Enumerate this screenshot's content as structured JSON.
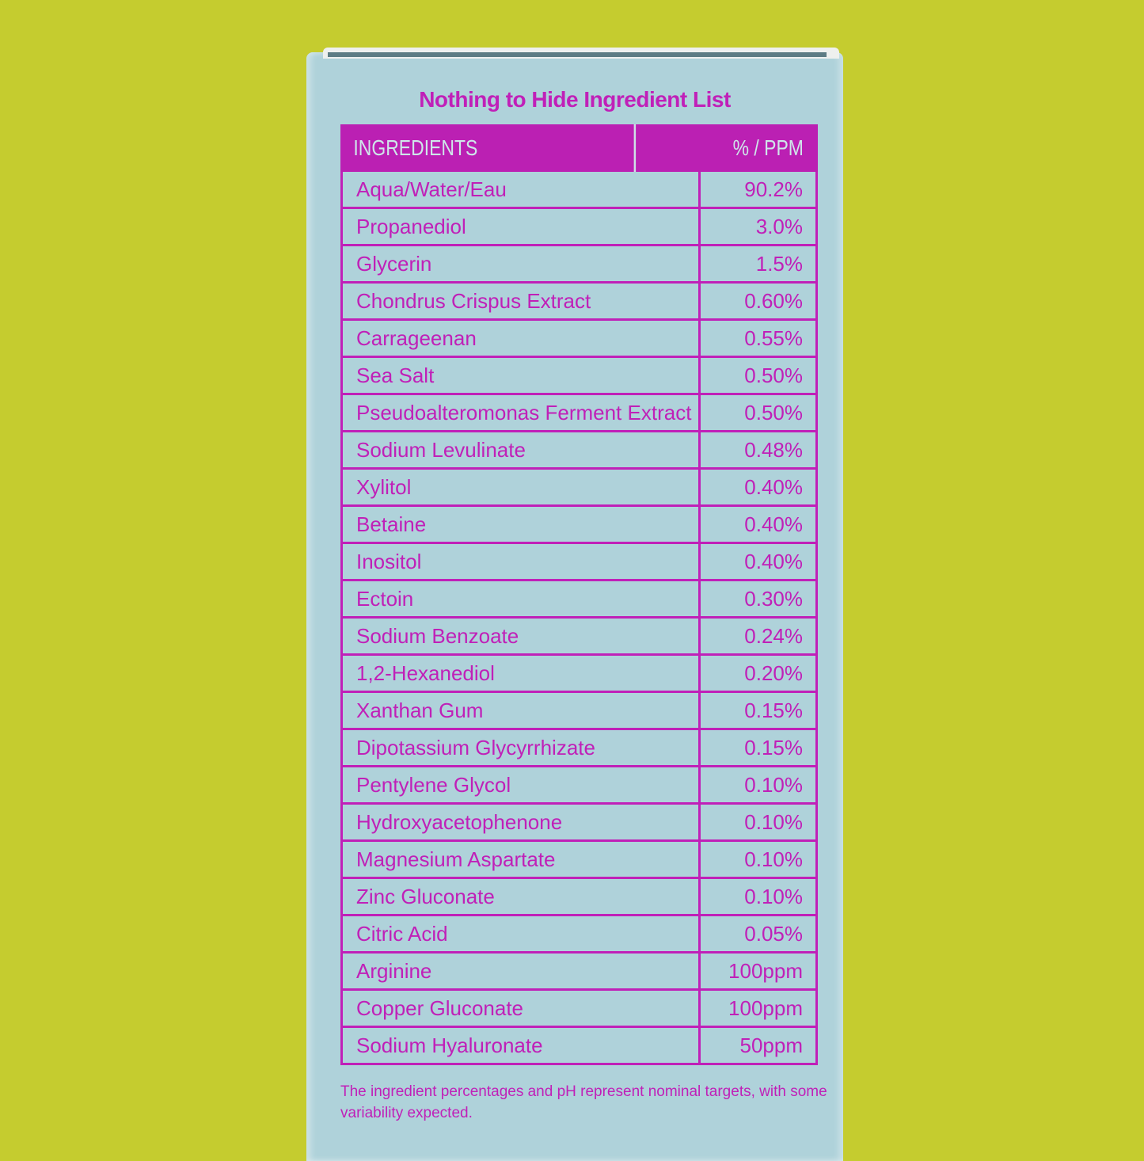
{
  "title": "Nothing to Hide Ingredient List",
  "header": {
    "ingredients": "INGREDIENTS",
    "amount": "% / PPM"
  },
  "rows": [
    {
      "name": "Aqua/Water/Eau",
      "amount": "90.2%"
    },
    {
      "name": "Propanediol",
      "amount": "3.0%"
    },
    {
      "name": "Glycerin",
      "amount": "1.5%"
    },
    {
      "name": "Chondrus Crispus Extract",
      "amount": "0.60%"
    },
    {
      "name": "Carrageenan",
      "amount": "0.55%"
    },
    {
      "name": "Sea Salt",
      "amount": "0.50%"
    },
    {
      "name": "Pseudoalteromonas Ferment Extract",
      "amount": "0.50%"
    },
    {
      "name": "Sodium Levulinate",
      "amount": "0.48%"
    },
    {
      "name": "Xylitol",
      "amount": "0.40%"
    },
    {
      "name": "Betaine",
      "amount": "0.40%"
    },
    {
      "name": "Inositol",
      "amount": "0.40%"
    },
    {
      "name": "Ectoin",
      "amount": "0.30%"
    },
    {
      "name": "Sodium Benzoate",
      "amount": "0.24%"
    },
    {
      "name": "1,2-Hexanediol",
      "amount": "0.20%"
    },
    {
      "name": "Xanthan Gum",
      "amount": "0.15%"
    },
    {
      "name": "Dipotassium Glycyrrhizate",
      "amount": "0.15%"
    },
    {
      "name": "Pentylene Glycol",
      "amount": "0.10%"
    },
    {
      "name": "Hydroxyacetophenone",
      "amount": "0.10%"
    },
    {
      "name": "Magnesium Aspartate",
      "amount": "0.10%"
    },
    {
      "name": "Zinc Gluconate",
      "amount": "0.10%"
    },
    {
      "name": "Citric Acid",
      "amount": "0.05%"
    },
    {
      "name": "Arginine",
      "amount": "100ppm"
    },
    {
      "name": "Copper Gluconate",
      "amount": "100ppm"
    },
    {
      "name": "Sodium Hyaluronate",
      "amount": "50ppm"
    }
  ],
  "note": "The ingredient percentages and pH represent nominal targets, with some variability expected.",
  "colors": {
    "background": "#c5cc2f",
    "box": "#afd2da",
    "accent": "#c020b8"
  }
}
